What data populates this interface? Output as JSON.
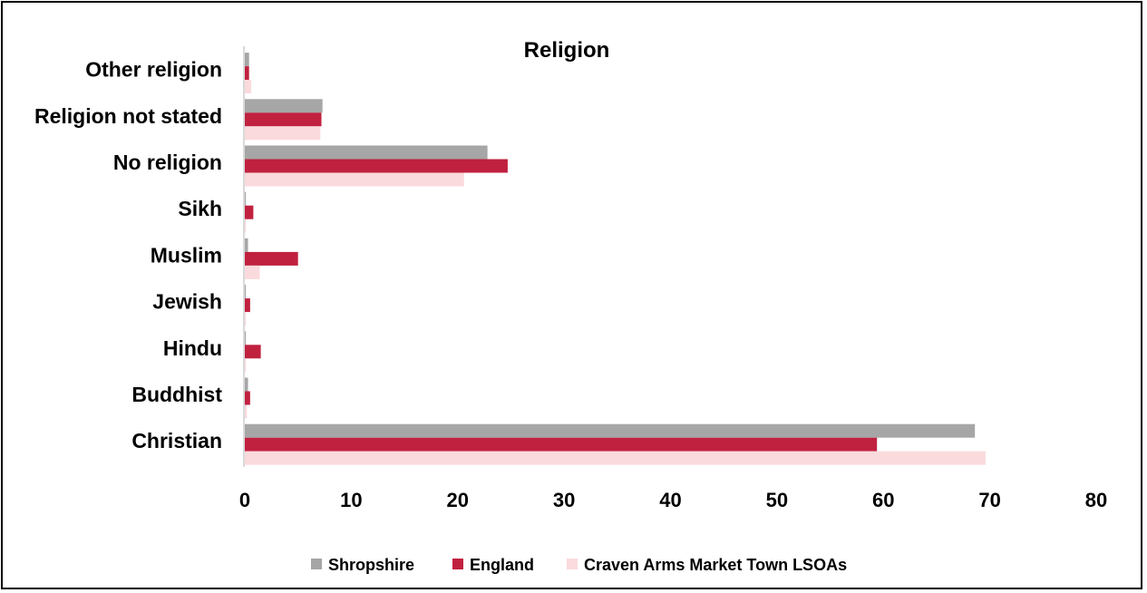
{
  "chart_data": {
    "type": "bar",
    "orientation": "horizontal",
    "title": "Religion",
    "categories": [
      "Other religion",
      "Religion not stated",
      "No religion",
      "Sikh",
      "Muslim",
      "Jewish",
      "Hindu",
      "Buddhist",
      "Christian"
    ],
    "series": [
      {
        "name": "Shropshire",
        "color": "#a6a6a6",
        "values": [
          0.4,
          7.3,
          22.8,
          0.1,
          0.3,
          0.1,
          0.1,
          0.3,
          68.6
        ]
      },
      {
        "name": "England",
        "color": "#c0213f",
        "values": [
          0.4,
          7.2,
          24.7,
          0.8,
          5.0,
          0.5,
          1.5,
          0.5,
          59.4
        ]
      },
      {
        "name": "Craven Arms Market Town LSOAs",
        "color": "#fadadd",
        "values": [
          0.6,
          7.1,
          20.6,
          0.1,
          1.4,
          0.1,
          0.1,
          0.2,
          69.6
        ]
      }
    ],
    "xlim": [
      0,
      80
    ],
    "xticks": [
      "0",
      "10",
      "20",
      "30",
      "40",
      "50",
      "60",
      "70",
      "80"
    ],
    "xlabel": "",
    "ylabel": "",
    "grid": false,
    "legend_position": "bottom"
  }
}
